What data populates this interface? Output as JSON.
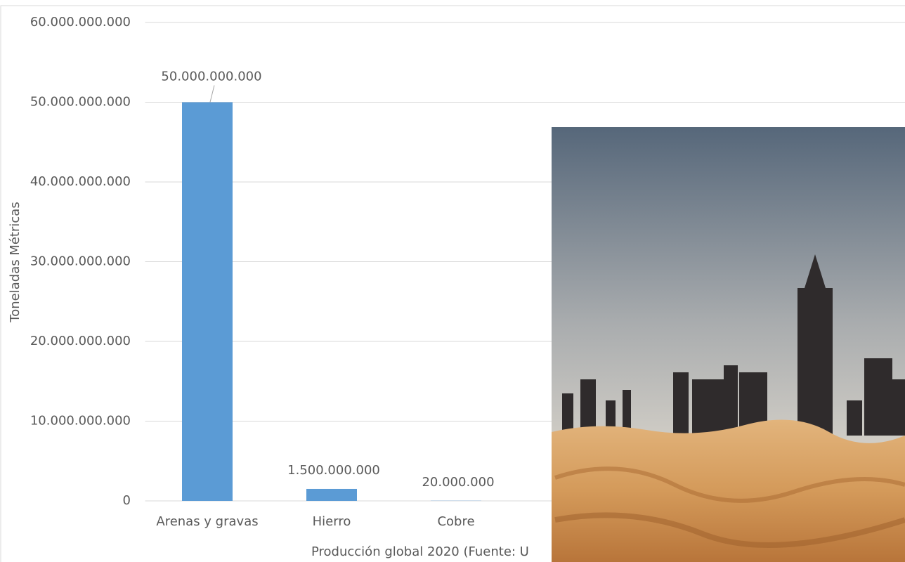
{
  "chart_data": {
    "type": "bar",
    "x_label": "Producción global 2020 (Fuente: U",
    "y_label": "Toneladas Métricas",
    "categories": [
      "Arenas y gravas",
      "Hierro",
      "Cobre"
    ],
    "values": [
      50000000000,
      1500000000,
      20000000
    ],
    "value_labels": [
      "50.000.000.000",
      "1.500.000.000",
      "20.000.000"
    ],
    "color": "#5b9bd5",
    "ylim": [
      0,
      60000000000
    ],
    "yticks": [
      0,
      {
        "value": 10000000000,
        "label": "10.000.000.000"
      },
      {
        "value": 20000000000,
        "label": "20.000.000.000"
      },
      {
        "value": 30000000000,
        "label": "30.000.000.000"
      },
      {
        "value": 40000000000,
        "label": "40.000.000.000"
      },
      {
        "value": 50000000000,
        "label": "50.000.000.000"
      },
      {
        "value": 60000000000,
        "label": "60.000.000.000"
      }
    ],
    "grid": true
  }
}
